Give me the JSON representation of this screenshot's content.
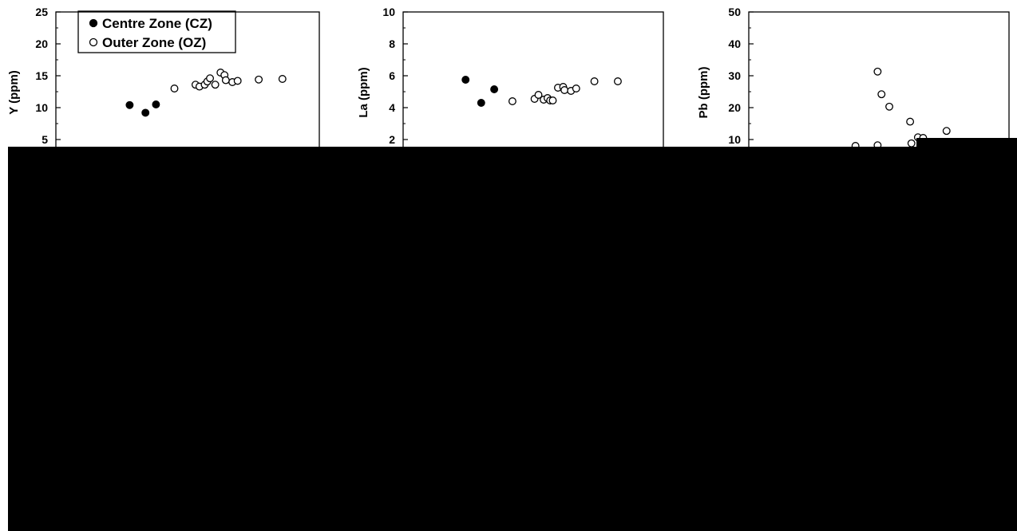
{
  "chart_data": [
    {
      "type": "scatter",
      "ylabel": "Y (ppm)",
      "ylim": [
        0,
        25
      ],
      "yticks": [
        5,
        10,
        15,
        20,
        25
      ],
      "xlim": [
        0,
        1
      ],
      "legend": "top-left",
      "series": [
        {
          "name": "Centre Zone (CZ)",
          "marker": "filled-circle",
          "points": [
            [
              0.28,
              10.4
            ],
            [
              0.34,
              9.2
            ],
            [
              0.38,
              10.5
            ]
          ]
        },
        {
          "name": "Outer Zone (OZ)",
          "marker": "open-circle",
          "points": [
            [
              0.45,
              13.0
            ],
            [
              0.53,
              13.6
            ],
            [
              0.545,
              13.3
            ],
            [
              0.565,
              13.6
            ],
            [
              0.575,
              14.1
            ],
            [
              0.585,
              14.6
            ],
            [
              0.605,
              13.6
            ],
            [
              0.625,
              15.5
            ],
            [
              0.64,
              15.1
            ],
            [
              0.645,
              14.3
            ],
            [
              0.67,
              14.0
            ],
            [
              0.69,
              14.2
            ],
            [
              0.77,
              14.4
            ],
            [
              0.86,
              14.5
            ]
          ]
        }
      ]
    },
    {
      "type": "scatter",
      "ylabel": "La (ppm)",
      "ylim": [
        0,
        10
      ],
      "yticks": [
        2,
        4,
        6,
        8,
        10
      ],
      "xlim": [
        0,
        1
      ],
      "series": [
        {
          "name": "Centre Zone (CZ)",
          "marker": "filled-circle",
          "points": [
            [
              0.24,
              5.75
            ],
            [
              0.3,
              4.3
            ],
            [
              0.35,
              5.15
            ]
          ]
        },
        {
          "name": "Outer Zone (OZ)",
          "marker": "open-circle",
          "points": [
            [
              0.42,
              4.4
            ],
            [
              0.505,
              4.55
            ],
            [
              0.52,
              4.8
            ],
            [
              0.54,
              4.5
            ],
            [
              0.555,
              4.6
            ],
            [
              0.565,
              4.45
            ],
            [
              0.575,
              4.45
            ],
            [
              0.595,
              5.25
            ],
            [
              0.615,
              5.3
            ],
            [
              0.62,
              5.1
            ],
            [
              0.645,
              5.05
            ],
            [
              0.665,
              5.2
            ],
            [
              0.735,
              5.65
            ],
            [
              0.825,
              5.65
            ]
          ]
        }
      ]
    },
    {
      "type": "scatter",
      "ylabel": "Pb (ppm)",
      "ylim": [
        0,
        50
      ],
      "yticks": [
        10,
        20,
        30,
        40,
        50
      ],
      "xlim": [
        0,
        1
      ],
      "series": [
        {
          "name": "Centre Zone (CZ)",
          "marker": "filled-circle",
          "points": []
        },
        {
          "name": "Outer Zone (OZ)",
          "marker": "open-circle",
          "points": [
            [
              0.41,
              8.0
            ],
            [
              0.495,
              8.2
            ],
            [
              0.495,
              31.3
            ],
            [
              0.51,
              24.2
            ],
            [
              0.54,
              20.3
            ],
            [
              0.62,
              15.6
            ],
            [
              0.625,
              8.8
            ],
            [
              0.65,
              10.7
            ],
            [
              0.67,
              10.5
            ],
            [
              0.76,
              12.7
            ]
          ]
        }
      ]
    }
  ]
}
